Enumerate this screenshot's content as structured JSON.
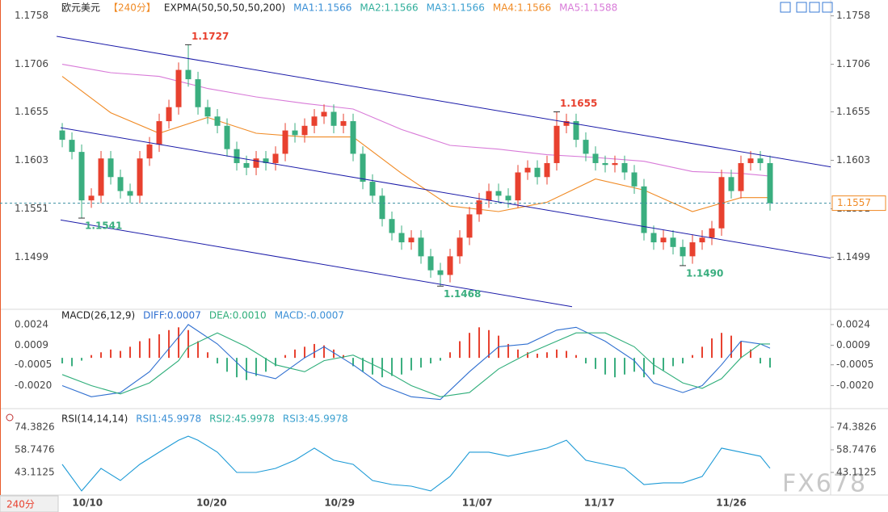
{
  "chart_data": [
    {
      "type": "candlestick",
      "title": "欧元美元",
      "period": "【240分】",
      "indicator": "EXPMA(50,50,50,50,200)",
      "legend": [
        {
          "name": "MA1:1.1566",
          "color": "#3a8fd6"
        },
        {
          "name": "MA2:1.1566",
          "color": "#2fae9a"
        },
        {
          "name": "MA3:1.1566",
          "color": "#3aa0d0"
        },
        {
          "name": "MA4:1.1566",
          "color": "#f08a24"
        },
        {
          "name": "MA5:1.1588",
          "color": "#d87ad8"
        }
      ],
      "open": [
        1.1635,
        1.1625,
        1.1612,
        1.156,
        1.1565,
        1.1605,
        1.1585,
        1.157,
        1.1565,
        1.1605,
        1.162,
        1.1645,
        1.166,
        1.17,
        1.169,
        1.166,
        1.165,
        1.164,
        1.1615,
        1.16,
        1.1595,
        1.1605,
        1.16,
        1.161,
        1.1635,
        1.163,
        1.164,
        1.165,
        1.1655,
        1.164,
        1.1645,
        1.161,
        1.158,
        1.1565,
        1.154,
        1.1525,
        1.1515,
        1.152,
        1.15,
        1.1485,
        1.148,
        1.15,
        1.152,
        1.1545,
        1.156,
        1.157,
        1.1565,
        1.156,
        1.159,
        1.1595,
        1.1585,
        1.16,
        1.164,
        1.1645,
        1.1625,
        1.161,
        1.16,
        1.1598,
        1.16,
        1.159,
        1.1575,
        1.1525,
        1.1515,
        1.152,
        1.151,
        1.15,
        1.1515,
        1.152,
        1.153,
        1.1585,
        1.157,
        1.16,
        1.1605,
        1.16
      ],
      "high": [
        1.1643,
        1.1633,
        1.162,
        1.1573,
        1.1613,
        1.1613,
        1.1593,
        1.1578,
        1.1613,
        1.1628,
        1.1653,
        1.1668,
        1.1708,
        1.1727,
        1.1698,
        1.1668,
        1.1658,
        1.1648,
        1.1623,
        1.1608,
        1.1613,
        1.1613,
        1.1618,
        1.1643,
        1.1643,
        1.1648,
        1.1658,
        1.1663,
        1.1663,
        1.1653,
        1.1653,
        1.1618,
        1.1588,
        1.1573,
        1.1548,
        1.1533,
        1.1528,
        1.1528,
        1.1508,
        1.1493,
        1.1508,
        1.1528,
        1.1553,
        1.1568,
        1.1578,
        1.1578,
        1.1573,
        1.1598,
        1.1603,
        1.1603,
        1.1608,
        1.1655,
        1.1653,
        1.1653,
        1.1633,
        1.1618,
        1.1608,
        1.1608,
        1.1608,
        1.1598,
        1.1583,
        1.1533,
        1.1528,
        1.1528,
        1.1518,
        1.1523,
        1.1528,
        1.1538,
        1.1593,
        1.1593,
        1.1608,
        1.1613,
        1.1613,
        1.1608
      ],
      "low": [
        1.1617,
        1.1604,
        1.1541,
        1.1552,
        1.1557,
        1.1577,
        1.1562,
        1.1557,
        1.1557,
        1.1597,
        1.1612,
        1.1637,
        1.1652,
        1.1682,
        1.1652,
        1.1642,
        1.1632,
        1.1607,
        1.1592,
        1.1587,
        1.1587,
        1.1592,
        1.1592,
        1.1602,
        1.1622,
        1.1622,
        1.1632,
        1.1642,
        1.1632,
        1.1632,
        1.1602,
        1.1572,
        1.1557,
        1.1532,
        1.1517,
        1.1507,
        1.1507,
        1.1492,
        1.1477,
        1.1468,
        1.1472,
        1.1492,
        1.1512,
        1.1537,
        1.1552,
        1.1557,
        1.1552,
        1.1552,
        1.1582,
        1.1577,
        1.1577,
        1.1592,
        1.1632,
        1.1617,
        1.1602,
        1.1592,
        1.159,
        1.159,
        1.1582,
        1.1567,
        1.1517,
        1.1507,
        1.1507,
        1.1502,
        1.149,
        1.1492,
        1.1507,
        1.1512,
        1.1522,
        1.1562,
        1.1562,
        1.1592,
        1.1592,
        1.1549
      ],
      "close": [
        1.1625,
        1.1612,
        1.156,
        1.1565,
        1.1605,
        1.1585,
        1.157,
        1.1565,
        1.1605,
        1.162,
        1.1645,
        1.166,
        1.17,
        1.169,
        1.166,
        1.165,
        1.164,
        1.1615,
        1.16,
        1.1595,
        1.1605,
        1.16,
        1.161,
        1.1635,
        1.163,
        1.164,
        1.165,
        1.1655,
        1.164,
        1.1645,
        1.161,
        1.158,
        1.1565,
        1.154,
        1.1525,
        1.1515,
        1.152,
        1.15,
        1.1485,
        1.148,
        1.15,
        1.152,
        1.1545,
        1.156,
        1.157,
        1.1565,
        1.156,
        1.159,
        1.1595,
        1.1585,
        1.16,
        1.164,
        1.1645,
        1.1625,
        1.161,
        1.16,
        1.1598,
        1.16,
        1.159,
        1.1575,
        1.1525,
        1.1515,
        1.152,
        1.151,
        1.15,
        1.1515,
        1.152,
        1.153,
        1.1585,
        1.157,
        1.16,
        1.1605,
        1.16,
        1.1557
      ],
      "up_color": "#e8412f",
      "down_color": "#3aae7f",
      "lines": [
        {
          "color": "#f08a24",
          "x": [
            0,
            5,
            10,
            15,
            20,
            25,
            30,
            35,
            40,
            45,
            50,
            55,
            60,
            65,
            70,
            73
          ],
          "values": [
            1.1693,
            1.1654,
            1.1632,
            1.1649,
            1.1632,
            1.1628,
            1.1628,
            1.1589,
            1.1554,
            1.1548,
            1.1558,
            1.1583,
            1.1571,
            1.1548,
            1.1563,
            1.1563
          ]
        },
        {
          "color": "#d87ad8",
          "x": [
            0,
            5,
            10,
            15,
            20,
            25,
            30,
            35,
            40,
            45,
            50,
            55,
            60,
            65,
            70,
            73
          ],
          "values": [
            1.1706,
            1.1697,
            1.1693,
            1.168,
            1.1671,
            1.1664,
            1.1658,
            1.1636,
            1.1619,
            1.1615,
            1.1609,
            1.1606,
            1.1602,
            1.1591,
            1.1589,
            1.1586
          ]
        }
      ],
      "trend_lines": {
        "color": "#1a1aa8",
        "lines": [
          {
            "x": [
              -0.58,
              79.25
            ],
            "values": [
              1.1736,
              1.1596
            ]
          },
          {
            "x": [
              -0.17,
              79.25
            ],
            "values": [
              1.1638,
              1.1498
            ]
          },
          {
            "x": [
              -0.17,
              52.58
            ],
            "values": [
              1.1539,
              1.1446
            ]
          }
        ]
      },
      "annotations": [
        {
          "value": 1.1727,
          "label": "1.1727"
        },
        {
          "value": 1.1541,
          "label": "1.1541"
        },
        {
          "value": 1.1468,
          "label": "1.1468"
        },
        {
          "value": 1.1655,
          "label": "1.1655"
        },
        {
          "value": 1.149,
          "label": "1.1490"
        }
      ],
      "last_price": 1.1557,
      "last_price_color": "#f08a24",
      "xlim": [
        -6.42,
        79.25
      ],
      "ylim": [
        1.1444,
        1.1775
      ],
      "yticks": [
        1.1758,
        1.1706,
        1.1655,
        1.1603,
        1.1551,
        1.1499
      ]
    },
    {
      "type": "macd",
      "title": "MACD(26,12,9)",
      "legend": [
        {
          "name": "DIFF:0.0007",
          "color": "#2f6fd0"
        },
        {
          "name": "DEA:0.0010",
          "color": "#2fae7a"
        },
        {
          "name": "MACD:-0.0007",
          "color": "#3a8fd6"
        }
      ],
      "histogram": [
        -0.0004,
        -0.0006,
        -0.0002,
        0.0002,
        0.0004,
        0.0006,
        0.0005,
        0.0008,
        0.0012,
        0.0014,
        0.0017,
        0.002,
        0.0022,
        0.002,
        0.0012,
        0.0004,
        -0.0004,
        -0.001,
        -0.0014,
        -0.0016,
        -0.0013,
        -0.001,
        -0.0006,
        0.0002,
        0.0006,
        0.0008,
        0.001,
        0.0009,
        0.0006,
        0.0002,
        -0.0006,
        -0.001,
        -0.0012,
        -0.0014,
        -0.0013,
        -0.0012,
        -0.0009,
        -0.0007,
        -0.0004,
        -0.0002,
        0.0004,
        0.0012,
        0.0018,
        0.0022,
        0.002,
        0.0016,
        0.001,
        0.0006,
        0.0004,
        0.0003,
        0.0004,
        0.0006,
        0.0005,
        0.0002,
        -0.0004,
        -0.0008,
        -0.0012,
        -0.0014,
        -0.0012,
        -0.001,
        -0.0014,
        -0.0012,
        -0.0009,
        -0.0006,
        -0.0004,
        0.0002,
        0.0008,
        0.0014,
        0.0018,
        0.0016,
        0.0012,
        0.0006,
        -0.0004,
        -0.0007
      ],
      "up_color": "#e8412f",
      "down_color": "#3aae7f",
      "lines": [
        {
          "color": "#2f6fd0",
          "x": [
            0,
            3,
            6,
            9,
            12,
            13,
            16,
            19,
            22,
            25,
            27,
            30,
            33,
            36,
            39,
            42,
            45,
            48,
            51,
            53,
            56,
            59,
            61,
            64,
            66,
            68,
            70,
            72,
            73
          ],
          "values": [
            -0.002,
            -0.0028,
            -0.0025,
            -0.001,
            0.0015,
            0.0024,
            0.001,
            -0.001,
            -0.0015,
            0.0,
            0.0008,
            -0.0005,
            -0.002,
            -0.0028,
            -0.003,
            -0.001,
            0.0008,
            0.001,
            0.002,
            0.0022,
            0.0012,
            -0.0002,
            -0.0018,
            -0.0025,
            -0.002,
            -0.0005,
            0.0012,
            0.001,
            0.0007
          ]
        },
        {
          "color": "#2fae7a",
          "x": [
            0,
            3,
            6,
            9,
            12,
            13,
            16,
            19,
            22,
            25,
            27,
            30,
            33,
            36,
            39,
            42,
            45,
            48,
            51,
            53,
            56,
            59,
            61,
            64,
            66,
            68,
            70,
            72,
            73
          ],
          "values": [
            -0.0012,
            -0.002,
            -0.0026,
            -0.0018,
            -0.0002,
            0.0008,
            0.0018,
            0.0008,
            -0.0005,
            -0.001,
            -0.0002,
            0.0002,
            -0.0008,
            -0.002,
            -0.0028,
            -0.0025,
            -0.0008,
            0.0003,
            0.0012,
            0.0018,
            0.0018,
            0.0008,
            -0.0005,
            -0.0018,
            -0.0022,
            -0.0015,
            0.0,
            0.001,
            0.001
          ]
        }
      ],
      "xlim": [
        -6.42,
        79.25
      ],
      "ylim": [
        -0.0036,
        0.00344
      ],
      "yticks": [
        0.0024,
        0.0009,
        -0.0005,
        {
          "value": -0.002,
          "label": "-0.0020"
        }
      ]
    },
    {
      "type": "rsi",
      "title": "RSI(14,14,14)",
      "legend": [
        {
          "name": "RSI1:45.9978",
          "color": "#3a8fd6"
        },
        {
          "name": "RSI2:45.9978",
          "color": "#2fae9a"
        },
        {
          "name": "RSI3:45.9978",
          "color": "#3aa0d0"
        }
      ],
      "lines": [
        {
          "color": "#1c9ad6",
          "x": [
            0,
            2,
            4,
            6,
            8,
            10,
            12,
            13,
            14,
            16,
            18,
            20,
            22,
            24,
            26,
            28,
            30,
            32,
            34,
            36,
            38,
            40,
            42,
            44,
            46,
            48,
            50,
            52,
            54,
            56,
            58,
            60,
            62,
            64,
            66,
            68,
            70,
            72,
            73
          ],
          "values": [
            48.7,
            30.3,
            45.9,
            37.5,
            48.7,
            57.1,
            65.4,
            68.2,
            65.4,
            57.1,
            43.1,
            43.1,
            45.9,
            51.5,
            59.9,
            51.5,
            48.7,
            37.5,
            34.7,
            33.6,
            30.3,
            40.3,
            57.1,
            57.1,
            54.3,
            57.1,
            59.9,
            65.4,
            51.5,
            48.7,
            45.9,
            34.7,
            35.9,
            35.9,
            40.3,
            59.9,
            57.1,
            54.3,
            46.0
          ]
        }
      ],
      "xlim": [
        -6.42,
        79.25
      ],
      "ylim": [
        28,
        85
      ],
      "yticks": [
        74.3826,
        58.7476,
        43.1125
      ],
      "xticks": [
        {
          "value": 2.6,
          "label": "10/10"
        },
        {
          "value": 15.4,
          "label": "10/20"
        },
        {
          "value": 28.6,
          "label": "10/29"
        },
        {
          "value": 42.8,
          "label": "11/07"
        },
        {
          "value": 55.4,
          "label": "11/17"
        },
        {
          "value": 69.0,
          "label": "11/26"
        }
      ]
    }
  ],
  "period_button": "240分",
  "watermark": "FX678"
}
